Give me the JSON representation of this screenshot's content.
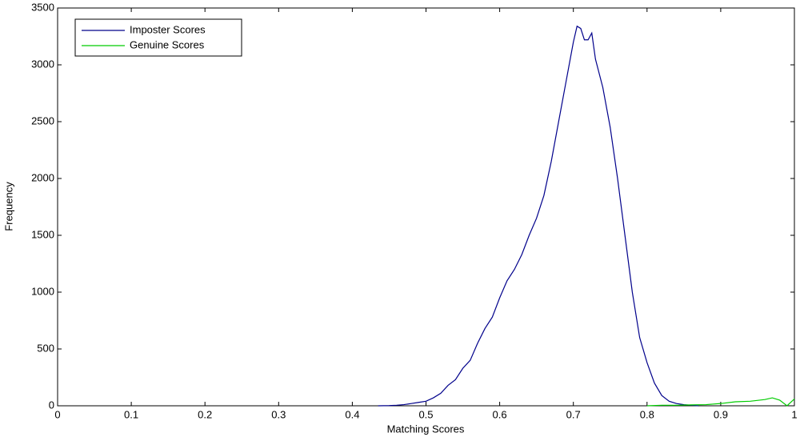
{
  "chart_data": {
    "type": "line",
    "xlabel": "Matching Scores",
    "ylabel": "Frequency",
    "xlim": [
      0,
      1
    ],
    "ylim": [
      0,
      3500
    ],
    "xticks": [
      0,
      0.1,
      0.2,
      0.3,
      0.4,
      0.5,
      0.6,
      0.7,
      0.8,
      0.9,
      1
    ],
    "yticks": [
      0,
      500,
      1000,
      1500,
      2000,
      2500,
      3000,
      3500
    ],
    "legend": "upper-left",
    "grid": false,
    "series": [
      {
        "name": "Imposter Scores",
        "color": "#00008b",
        "x": [
          0.435,
          0.45,
          0.46,
          0.47,
          0.48,
          0.49,
          0.5,
          0.51,
          0.52,
          0.53,
          0.54,
          0.55,
          0.56,
          0.57,
          0.58,
          0.59,
          0.6,
          0.61,
          0.62,
          0.63,
          0.64,
          0.65,
          0.66,
          0.67,
          0.68,
          0.69,
          0.7,
          0.705,
          0.71,
          0.715,
          0.72,
          0.725,
          0.73,
          0.74,
          0.75,
          0.76,
          0.77,
          0.78,
          0.79,
          0.8,
          0.81,
          0.82,
          0.83,
          0.84,
          0.85,
          0.86,
          0.87
        ],
        "values": [
          0,
          2,
          5,
          10,
          20,
          30,
          40,
          70,
          110,
          180,
          230,
          330,
          400,
          550,
          680,
          780,
          950,
          1100,
          1200,
          1330,
          1500,
          1650,
          1850,
          2150,
          2500,
          2850,
          3200,
          3340,
          3320,
          3220,
          3220,
          3280,
          3050,
          2800,
          2450,
          2000,
          1500,
          1000,
          600,
          380,
          200,
          90,
          40,
          20,
          10,
          5,
          0
        ]
      },
      {
        "name": "Genuine Scores",
        "color": "#00cc00",
        "x": [
          0.8,
          0.82,
          0.84,
          0.86,
          0.88,
          0.9,
          0.92,
          0.94,
          0.96,
          0.97,
          0.98,
          0.99,
          1.0
        ],
        "values": [
          0,
          5,
          5,
          8,
          10,
          20,
          35,
          40,
          55,
          70,
          50,
          0,
          60
        ]
      }
    ]
  }
}
